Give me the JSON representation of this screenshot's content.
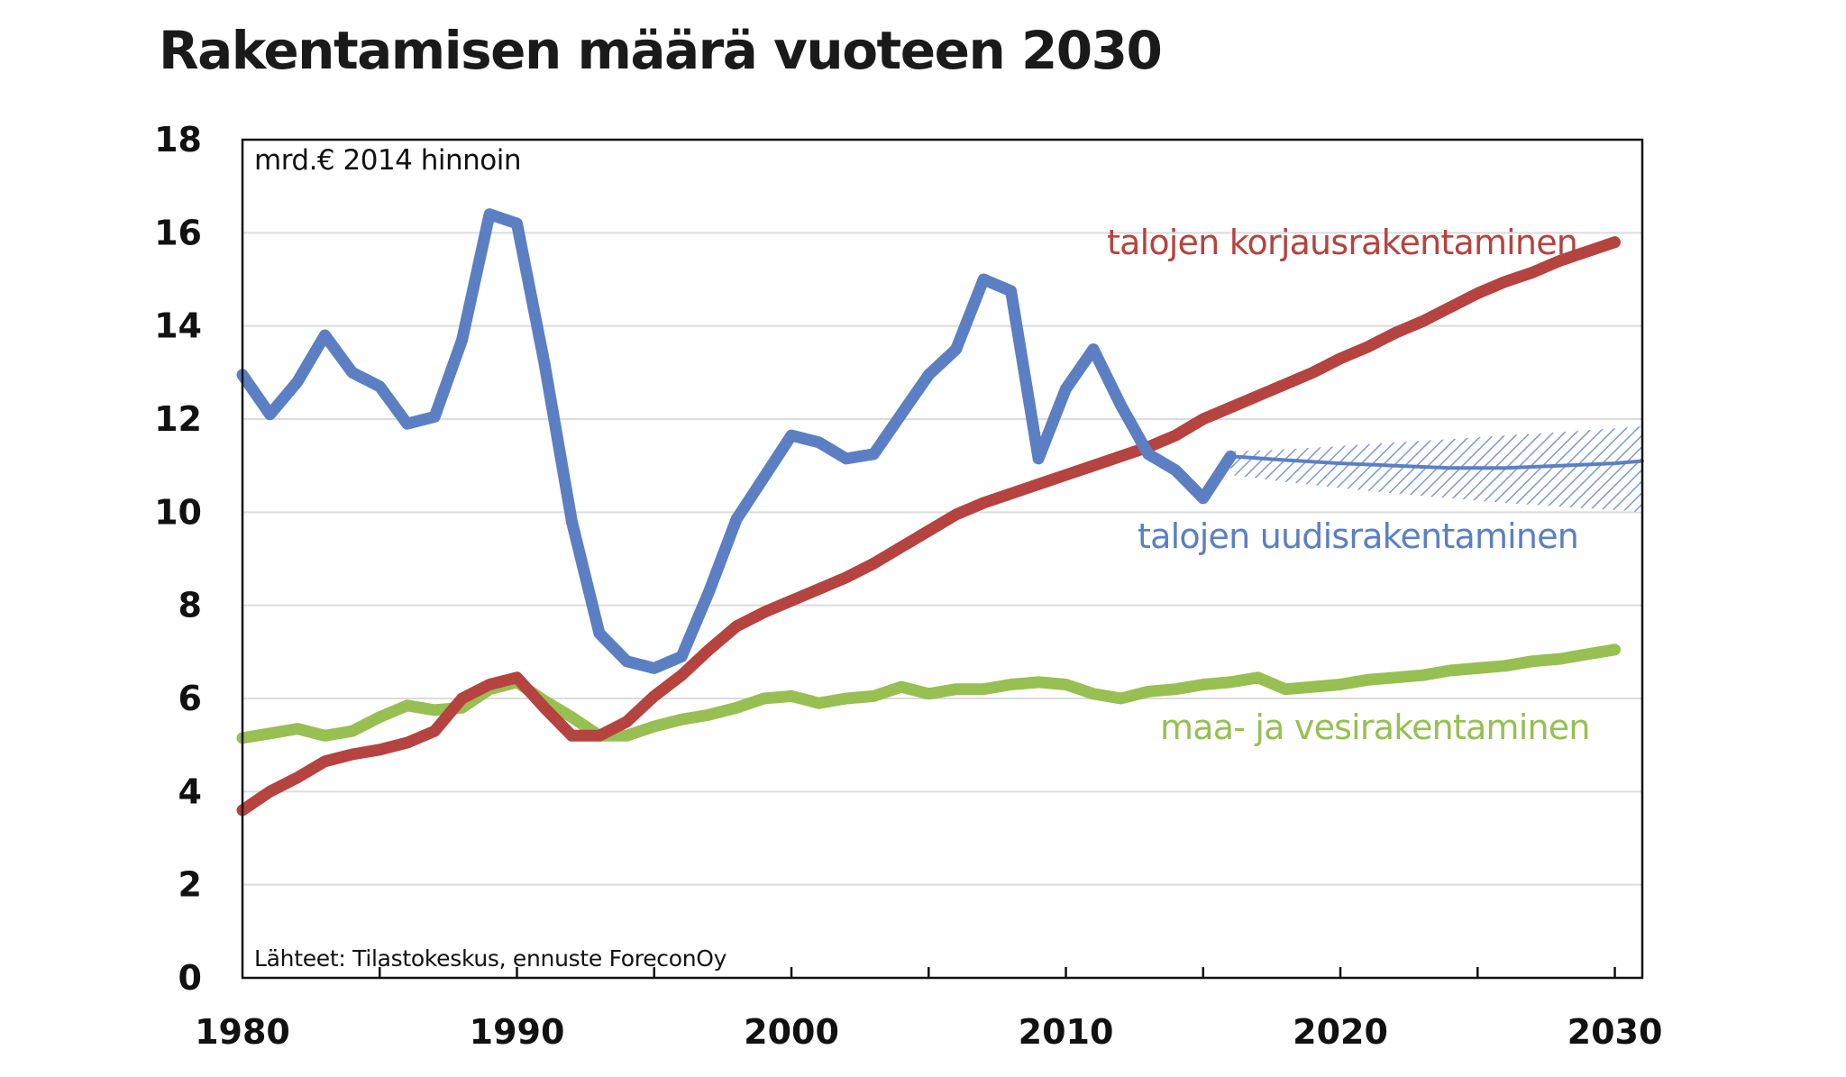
{
  "chart_data": {
    "type": "line",
    "title": "Rakentamisen määrä vuoteen 2030",
    "unit_label": "mrd.€ 2014 hinnoin",
    "source": "Lähteet: Tilastokeskus, ennuste ForeconOy",
    "xlim": [
      1980,
      2031
    ],
    "ylim": [
      0,
      18
    ],
    "x_ticks": [
      1980,
      1990,
      2000,
      2010,
      2020,
      2030
    ],
    "y_ticks": [
      0,
      2,
      4,
      6,
      8,
      10,
      12,
      14,
      16,
      18
    ],
    "grid": true,
    "colors": {
      "korjaus": "#b5433f",
      "uudis": "#5b7fc2",
      "maavesi": "#97bf52",
      "band": "#8aa3d0"
    },
    "series": [
      {
        "key": "korjaus",
        "name": "talojen korjausrakentaminen",
        "x": [
          1980,
          1981,
          1982,
          1983,
          1984,
          1985,
          1986,
          1987,
          1988,
          1989,
          1990,
          1991,
          1992,
          1993,
          1994,
          1995,
          1996,
          1997,
          1998,
          1999,
          2000,
          2001,
          2002,
          2003,
          2004,
          2005,
          2006,
          2007,
          2008,
          2009,
          2010,
          2011,
          2012,
          2013,
          2014,
          2015,
          2016,
          2017,
          2018,
          2019,
          2020,
          2021,
          2022,
          2023,
          2024,
          2025,
          2026,
          2027,
          2028,
          2029,
          2030
        ],
        "values": [
          3.6,
          4.0,
          4.3,
          4.65,
          4.8,
          4.9,
          5.05,
          5.3,
          6.0,
          6.3,
          6.45,
          5.8,
          5.2,
          5.2,
          5.5,
          6.05,
          6.5,
          7.05,
          7.55,
          7.85,
          8.1,
          8.35,
          8.6,
          8.9,
          9.25,
          9.6,
          9.95,
          10.2,
          10.4,
          10.6,
          10.8,
          11.0,
          11.2,
          11.4,
          11.65,
          12.0,
          12.25,
          12.5,
          12.75,
          13.0,
          13.3,
          13.55,
          13.85,
          14.1,
          14.4,
          14.7,
          14.95,
          15.15,
          15.4,
          15.6,
          15.8
        ]
      },
      {
        "key": "uudis",
        "name": "talojen uudisrakentaminen",
        "x": [
          1980,
          1981,
          1982,
          1983,
          1984,
          1985,
          1986,
          1987,
          1988,
          1989,
          1990,
          1991,
          1992,
          1993,
          1994,
          1995,
          1996,
          1997,
          1998,
          1999,
          2000,
          2001,
          2002,
          2003,
          2004,
          2005,
          2006,
          2007,
          2008,
          2009,
          2010,
          2011,
          2012,
          2013,
          2014,
          2015,
          2016
        ],
        "values": [
          12.95,
          12.1,
          12.8,
          13.8,
          13.0,
          12.7,
          11.9,
          12.05,
          13.7,
          16.4,
          16.2,
          13.2,
          9.8,
          7.4,
          6.8,
          6.65,
          6.9,
          8.3,
          9.85,
          10.75,
          11.65,
          11.5,
          11.15,
          11.25,
          12.1,
          12.95,
          13.5,
          15.0,
          14.75,
          11.15,
          12.65,
          13.5,
          12.3,
          11.25,
          10.9,
          10.3,
          11.2
        ]
      },
      {
        "key": "uudis_ennuste",
        "name": "talojen uudisrakentaminen",
        "x": [
          2016,
          2018,
          2020,
          2022,
          2024,
          2026,
          2028,
          2030,
          2031
        ],
        "values": [
          11.2,
          11.12,
          11.05,
          11.0,
          10.95,
          10.95,
          11.0,
          11.05,
          11.1
        ],
        "band_upper": [
          11.3,
          11.35,
          11.42,
          11.5,
          11.57,
          11.65,
          11.72,
          11.8,
          11.85
        ],
        "band_lower": [
          10.8,
          10.65,
          10.52,
          10.4,
          10.3,
          10.2,
          10.12,
          10.05,
          10.0
        ]
      },
      {
        "key": "maavesi",
        "name": "maa- ja vesirakentaminen",
        "x": [
          1980,
          1981,
          1982,
          1983,
          1984,
          1985,
          1986,
          1987,
          1988,
          1989,
          1990,
          1991,
          1992,
          1993,
          1994,
          1995,
          1996,
          1997,
          1998,
          1999,
          2000,
          2001,
          2002,
          2003,
          2004,
          2005,
          2006,
          2007,
          2008,
          2009,
          2010,
          2011,
          2012,
          2013,
          2014,
          2015,
          2016,
          2017,
          2018,
          2019,
          2020,
          2021,
          2022,
          2023,
          2024,
          2025,
          2026,
          2027,
          2028,
          2029,
          2030
        ],
        "values": [
          5.15,
          5.25,
          5.35,
          5.2,
          5.3,
          5.6,
          5.85,
          5.75,
          5.8,
          6.2,
          6.35,
          5.95,
          5.6,
          5.2,
          5.2,
          5.4,
          5.55,
          5.65,
          5.8,
          6.0,
          6.05,
          5.9,
          6.0,
          6.05,
          6.25,
          6.1,
          6.2,
          6.2,
          6.3,
          6.35,
          6.3,
          6.1,
          6.0,
          6.15,
          6.2,
          6.3,
          6.35,
          6.45,
          6.2,
          6.25,
          6.3,
          6.4,
          6.45,
          6.5,
          6.6,
          6.65,
          6.7,
          6.8,
          6.85,
          6.95,
          7.05
        ]
      }
    ]
  }
}
